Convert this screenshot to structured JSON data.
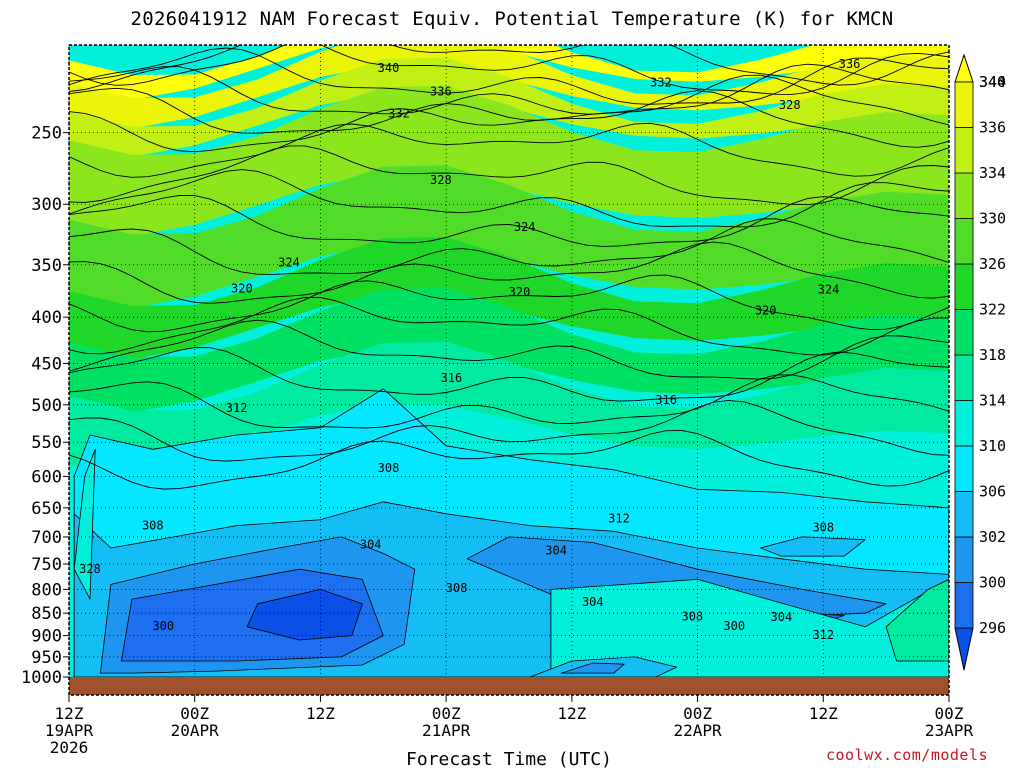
{
  "title": "2026041912 NAM Forecast Equiv. Potential Temperature (K) for KMCN",
  "credit": "coolwx.com/models",
  "chart_data": {
    "type": "heatmap",
    "title": "2026041912 NAM Forecast Equiv. Potential Temperature (K) for KMCN",
    "xlabel": "Forecast Time (UTC)",
    "ylabel": "",
    "x_range_hours": [
      0,
      84
    ],
    "y_range_hPa": [
      1000,
      200
    ],
    "x_ticks": [
      {
        "hour": 0,
        "line1": "12Z",
        "line2": "19APR",
        "line3": "2026"
      },
      {
        "hour": 12,
        "line1": "00Z",
        "line2": "20APR",
        "line3": ""
      },
      {
        "hour": 24,
        "line1": "12Z",
        "line2": "",
        "line3": ""
      },
      {
        "hour": 36,
        "line1": "00Z",
        "line2": "21APR",
        "line3": ""
      },
      {
        "hour": 48,
        "line1": "12Z",
        "line2": "",
        "line3": ""
      },
      {
        "hour": 60,
        "line1": "00Z",
        "line2": "22APR",
        "line3": ""
      },
      {
        "hour": 72,
        "line1": "12Z",
        "line2": "",
        "line3": ""
      },
      {
        "hour": 84,
        "line1": "00Z",
        "line2": "23APR",
        "line3": ""
      }
    ],
    "y_ticks": [
      1000,
      950,
      900,
      850,
      800,
      750,
      700,
      650,
      600,
      550,
      500,
      450,
      400,
      350,
      300,
      250
    ],
    "colorbar": {
      "levels": [
        296,
        300,
        302,
        306,
        310,
        314,
        318,
        322,
        326,
        330,
        334,
        336,
        340,
        344
      ],
      "colors": [
        "#0a50e6",
        "#1e6ef0",
        "#1e96f0",
        "#14bef5",
        "#05e6ff",
        "#00f0dc",
        "#00eba0",
        "#00e164",
        "#1ed728",
        "#50dc28",
        "#8ce61e",
        "#c3f014",
        "#ebf50a",
        "#ffff0a"
      ]
    },
    "contour_labels": [
      {
        "hour": 30.5,
        "p": 212,
        "text": "340"
      },
      {
        "hour": 35.5,
        "p": 225,
        "text": "336"
      },
      {
        "hour": 31.5,
        "p": 238,
        "text": "332"
      },
      {
        "hour": 56.5,
        "p": 220,
        "text": "332"
      },
      {
        "hour": 68.8,
        "p": 233,
        "text": "328"
      },
      {
        "hour": 74.5,
        "p": 210,
        "text": "336"
      },
      {
        "hour": 35.5,
        "p": 282,
        "text": "328"
      },
      {
        "hour": 43.5,
        "p": 318,
        "text": "324"
      },
      {
        "hour": 21.0,
        "p": 348,
        "text": "324"
      },
      {
        "hour": 72.5,
        "p": 373,
        "text": "324"
      },
      {
        "hour": 16.5,
        "p": 372,
        "text": "320"
      },
      {
        "hour": 43.0,
        "p": 375,
        "text": "320"
      },
      {
        "hour": 66.5,
        "p": 393,
        "text": "320"
      },
      {
        "hour": 36.5,
        "p": 467,
        "text": "316"
      },
      {
        "hour": 57.0,
        "p": 494,
        "text": "316"
      },
      {
        "hour": 16.0,
        "p": 504,
        "text": "312"
      },
      {
        "hour": 30.5,
        "p": 587,
        "text": "308"
      },
      {
        "hour": 52.5,
        "p": 668,
        "text": "312"
      },
      {
        "hour": 8.0,
        "p": 680,
        "text": "308"
      },
      {
        "hour": 28.8,
        "p": 714,
        "text": "304"
      },
      {
        "hour": 46.5,
        "p": 725,
        "text": "304"
      },
      {
        "hour": 72.0,
        "p": 683,
        "text": "308"
      },
      {
        "hour": 2.0,
        "p": 760,
        "text": "328"
      },
      {
        "hour": 37.0,
        "p": 797,
        "text": "308"
      },
      {
        "hour": 50.0,
        "p": 826,
        "text": "304"
      },
      {
        "hour": 59.5,
        "p": 857,
        "text": "308"
      },
      {
        "hour": 68.0,
        "p": 858,
        "text": "304"
      },
      {
        "hour": 63.5,
        "p": 878,
        "text": "300"
      },
      {
        "hour": 9.0,
        "p": 878,
        "text": "300"
      },
      {
        "hour": 72.0,
        "p": 898,
        "text": "312"
      }
    ],
    "regions": [
      {
        "value": 310,
        "pts": [
          [
            0.5,
            1000
          ],
          [
            0.5,
            600
          ],
          [
            2,
            540
          ],
          [
            8,
            560
          ],
          [
            16,
            540
          ],
          [
            24,
            530
          ],
          [
            30,
            480
          ],
          [
            36,
            555
          ],
          [
            44,
            575
          ],
          [
            52,
            590
          ],
          [
            60,
            620
          ],
          [
            68,
            625
          ],
          [
            76,
            640
          ],
          [
            84,
            650
          ],
          [
            84,
            1000
          ]
        ]
      },
      {
        "value": 306,
        "pts": [
          [
            0.5,
            1000
          ],
          [
            0.5,
            660
          ],
          [
            4,
            720
          ],
          [
            10,
            700
          ],
          [
            16,
            680
          ],
          [
            24,
            670
          ],
          [
            30,
            640
          ],
          [
            36,
            660
          ],
          [
            44,
            680
          ],
          [
            52,
            690
          ],
          [
            60,
            720
          ],
          [
            68,
            740
          ],
          [
            76,
            760
          ],
          [
            84,
            770
          ],
          [
            84,
            1000
          ]
        ]
      },
      {
        "value": 306,
        "pts": [
          [
            66,
            720
          ],
          [
            70,
            700
          ],
          [
            76,
            705
          ],
          [
            74,
            735
          ],
          [
            68,
            735
          ]
        ]
      },
      {
        "value": 302,
        "pts": [
          [
            3,
            990
          ],
          [
            4,
            790
          ],
          [
            12,
            750
          ],
          [
            20,
            720
          ],
          [
            26,
            700
          ],
          [
            30,
            730
          ],
          [
            33,
            760
          ],
          [
            32,
            920
          ],
          [
            28,
            970
          ],
          [
            14,
            985
          ],
          [
            6,
            990
          ]
        ]
      },
      {
        "value": 302,
        "pts": [
          [
            42,
            700
          ],
          [
            50,
            710
          ],
          [
            60,
            760
          ],
          [
            70,
            800
          ],
          [
            78,
            830
          ],
          [
            76,
            850
          ],
          [
            66,
            860
          ],
          [
            56,
            840
          ],
          [
            46,
            810
          ],
          [
            38,
            740
          ]
        ]
      },
      {
        "value": 300,
        "pts": [
          [
            5,
            960
          ],
          [
            6,
            820
          ],
          [
            14,
            790
          ],
          [
            22,
            760
          ],
          [
            28,
            780
          ],
          [
            30,
            900
          ],
          [
            26,
            950
          ],
          [
            16,
            960
          ]
        ]
      },
      {
        "value": 300,
        "pts": [
          [
            58,
            840
          ],
          [
            66,
            845
          ],
          [
            74,
            855
          ],
          [
            72,
            870
          ],
          [
            62,
            862
          ]
        ]
      },
      {
        "value": 296,
        "pts": [
          [
            18,
            830
          ],
          [
            24,
            800
          ],
          [
            28,
            830
          ],
          [
            27,
            900
          ],
          [
            22,
            910
          ],
          [
            17,
            880
          ]
        ]
      },
      {
        "value": 314,
        "pts": [
          [
            46,
            800
          ],
          [
            60,
            780
          ],
          [
            76,
            880
          ],
          [
            84,
            780
          ],
          [
            84,
            1000
          ],
          [
            46,
            1000
          ]
        ]
      },
      {
        "value": 318,
        "pts": [
          [
            78,
            880
          ],
          [
            82,
            800
          ],
          [
            84,
            780
          ],
          [
            84,
            960
          ],
          [
            79,
            960
          ]
        ]
      },
      {
        "value": 306,
        "pts": [
          [
            44,
            1000
          ],
          [
            48,
            960
          ],
          [
            54,
            950
          ],
          [
            58,
            975
          ],
          [
            56,
            1000
          ]
        ]
      },
      {
        "value": 302,
        "pts": [
          [
            47,
            990
          ],
          [
            50,
            965
          ],
          [
            53,
            968
          ],
          [
            52,
            990
          ]
        ]
      },
      {
        "value": 314,
        "pts": [
          [
            0.5,
            760
          ],
          [
            1.5,
            600
          ],
          [
            2.5,
            560
          ],
          [
            2,
            820
          ]
        ]
      }
    ]
  }
}
